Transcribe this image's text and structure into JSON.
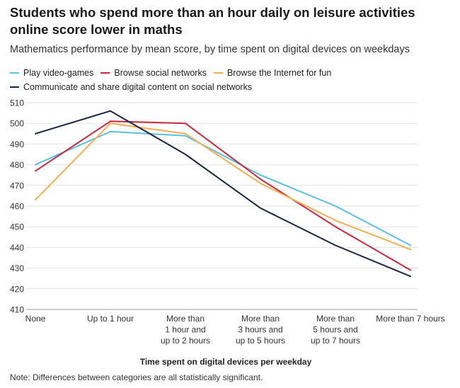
{
  "title": "Students who spend more than an hour daily on leisure activities online score lower in maths",
  "subtitle": "Mathematics performance by mean score, by time spent on digital devices on weekdays",
  "note": "Note: Differences between categories are all statistically significant.",
  "chart_data": {
    "type": "line",
    "xlabel": "Time spent on digital devices per weekday",
    "ylabel": "",
    "ylim": [
      410,
      510
    ],
    "yticks": [
      410,
      420,
      430,
      440,
      450,
      460,
      470,
      480,
      490,
      500,
      510
    ],
    "grid": true,
    "legend_position": "top",
    "categories": [
      [
        "None"
      ],
      [
        "Up to 1 hour"
      ],
      [
        "More than",
        "1 hour and",
        "up to 2 hours"
      ],
      [
        "More than",
        "3 hours and",
        "up to 5 hours"
      ],
      [
        "More than",
        "5 hours and",
        "up to 7 hours"
      ],
      [
        "More than 7 hours"
      ]
    ],
    "series": [
      {
        "name": "Play video-games",
        "color": "#5bbfe0",
        "values": [
          480,
          496,
          494,
          475,
          460,
          441
        ]
      },
      {
        "name": "Browse social networks",
        "color": "#c8283d",
        "values": [
          477,
          501,
          500,
          473,
          450,
          429
        ]
      },
      {
        "name": "Browse the Internet for fun",
        "color": "#f5ad52",
        "values": [
          463,
          500,
          495,
          471,
          453,
          439
        ]
      },
      {
        "name": "Communicate and share digital content on social networks",
        "color": "#1a2642",
        "values": [
          495,
          506,
          485,
          459,
          441,
          426
        ]
      }
    ]
  }
}
